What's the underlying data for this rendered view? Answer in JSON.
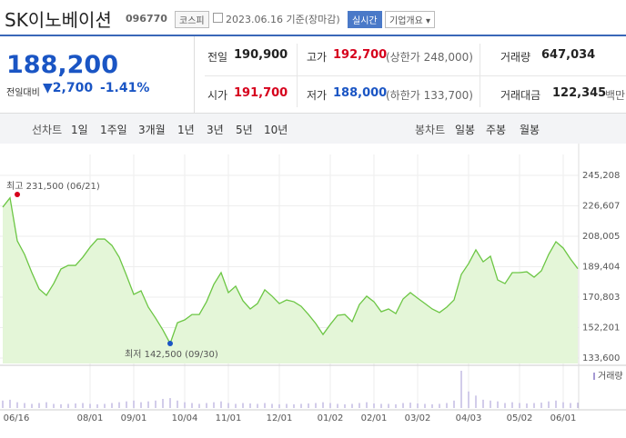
{
  "header": {
    "name": "SK이노베이션",
    "code": "096770",
    "market": "코스피",
    "date": "2023.06.16 기준(장마감)",
    "realtime": "실시간",
    "company_button": "기업개요"
  },
  "price": {
    "current": "188,200",
    "change_label": "전일대비",
    "change": "2,700",
    "change_pct": "-1.41%"
  },
  "stats": [
    [
      {
        "label": "전일",
        "value": "190,900"
      },
      {
        "label": "고가",
        "value": "192,700",
        "extra": "(상한가 248,000)"
      },
      {
        "label": "거래량",
        "value": "647,034"
      }
    ],
    [
      {
        "label": "시가",
        "value": "191,700"
      },
      {
        "label": "저가",
        "value": "188,000",
        "extra": "(하한가 133,700)"
      },
      {
        "label": "거래대금",
        "value": "122,345",
        "extra": "백만"
      }
    ]
  ],
  "tabs": {
    "line_label": "선차트",
    "line": [
      "1일",
      "1주일",
      "3개월",
      "1년",
      "3년",
      "5년",
      "10년"
    ],
    "candle_label": "봉차트",
    "candle": [
      "일봉",
      "주봉",
      "월봉"
    ]
  },
  "chart_data": {
    "type": "line",
    "color": "#6cc644",
    "values": [
      225800,
      231500,
      205200,
      196900,
      185800,
      175800,
      171900,
      179100,
      188000,
      190200,
      190200,
      195200,
      201300,
      206300,
      206300,
      202400,
      195200,
      184100,
      172500,
      174700,
      164700,
      158000,
      150800,
      142500,
      155200,
      156900,
      160200,
      160200,
      168000,
      178600,
      185800,
      173600,
      177500,
      168600,
      163600,
      166900,
      175300,
      171400,
      166900,
      169100,
      168000,
      165200,
      160200,
      154700,
      148000,
      154100,
      159700,
      160200,
      155800,
      166300,
      171400,
      168000,
      161900,
      163600,
      160800,
      169700,
      173600,
      170200,
      166900,
      163600,
      161400,
      164700,
      169100,
      184700,
      191300,
      199700,
      192400,
      195800,
      181300,
      179100,
      185800,
      185800,
      186300,
      183000,
      186900,
      196900,
      204700,
      200800,
      194100,
      188200
    ],
    "volume": [
      900000,
      1000000,
      700000,
      600000,
      500000,
      600000,
      700000,
      500000,
      450000,
      500000,
      550000,
      600000,
      500000,
      450000,
      500000,
      600000,
      700000,
      800000,
      900000,
      700000,
      800000,
      900000,
      1100000,
      1200000,
      900000,
      700000,
      600000,
      500000,
      600000,
      700000,
      800000,
      600000,
      500000,
      600000,
      550000,
      500000,
      600000,
      500000,
      450000,
      500000,
      450000,
      500000,
      550000,
      600000,
      700000,
      600000,
      500000,
      450000,
      500000,
      600000,
      700000,
      550000,
      500000,
      500000,
      450000,
      600000,
      650000,
      550000,
      500000,
      450000,
      500000,
      600000,
      900000,
      4500000,
      2000000,
      1500000,
      1000000,
      900000,
      800000,
      600000,
      700000,
      600000,
      550000,
      600000,
      650000,
      800000,
      900000,
      700000,
      600000,
      647034
    ],
    "volume_label": "거래량",
    "max_label": "최고 231,500 (06/21)",
    "max_index": 1,
    "min_label": "최저 142,500 (09/30)",
    "min_index": 23,
    "ylim": [
      133600,
      245208
    ],
    "yticks": [
      {
        "value": 245208,
        "label": "245,208"
      },
      {
        "value": 226607,
        "label": "226,607"
      },
      {
        "value": 208005,
        "label": "208,005"
      },
      {
        "value": 189404,
        "label": "189,404"
      },
      {
        "value": 170803,
        "label": "170,803"
      },
      {
        "value": 152201,
        "label": "152,201"
      },
      {
        "value": 133600,
        "label": "133,600"
      }
    ],
    "xticks": [
      {
        "value": 0,
        "label": "06/16"
      },
      {
        "value": 12,
        "label": "08/01"
      },
      {
        "value": 18,
        "label": "09/01"
      },
      {
        "value": 25,
        "label": "10/04"
      },
      {
        "value": 31,
        "label": "11/01"
      },
      {
        "value": 38,
        "label": "12/01"
      },
      {
        "value": 45,
        "label": "01/02"
      },
      {
        "value": 51,
        "label": "02/01"
      },
      {
        "value": 57,
        "label": "03/02"
      },
      {
        "value": 64,
        "label": "04/03"
      },
      {
        "value": 71,
        "label": "05/02"
      },
      {
        "value": 77,
        "label": "06/01"
      }
    ],
    "grid": true
  }
}
